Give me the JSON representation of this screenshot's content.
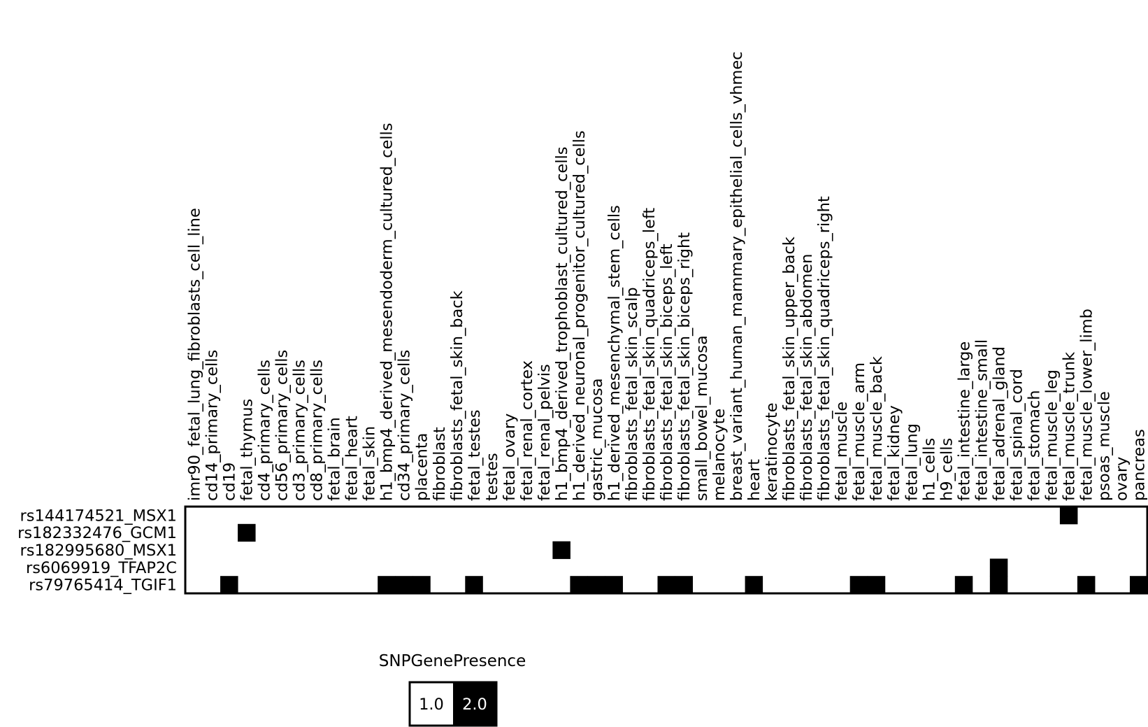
{
  "chart_data": {
    "type": "heatmap",
    "title": "",
    "xlabel": "",
    "ylabel": "",
    "columns": [
      "imr90_fetal_lung_fibroblasts_cell_line",
      "cd14_primary_cells",
      "cd19",
      "fetal_thymus",
      "cd4_primary_cells",
      "cd56_primary_cells",
      "cd3_primary_cells",
      "cd8_primary_cells",
      "fetal_brain",
      "fetal_heart",
      "fetal_skin",
      "h1_bmp4_derived_mesendoderm_cultured_cells",
      "cd34_primary_cells",
      "placenta",
      "fibroblast",
      "fibroblasts_fetal_skin_back",
      "fetal_testes",
      "testes",
      "fetal_ovary",
      "fetal_renal_cortex",
      "fetal_renal_pelvis",
      "h1_bmp4_derived_trophoblast_cultured_cells",
      "h1_derived_neuronal_progenitor_cultured_cells",
      "gastric_mucosa",
      "h1_derived_mesenchymal_stem_cells",
      "fibroblasts_fetal_skin_scalp",
      "fibroblasts_fetal_skin_quadriceps_left",
      "fibroblasts_fetal_skin_biceps_left",
      "fibroblasts_fetal_skin_biceps_right",
      "small_bowel_mucosa",
      "melanocyte",
      "breast_variant_human_mammary_epithelial_cells_vhmec",
      "heart",
      "keratinocyte",
      "fibroblasts_fetal_skin_upper_back",
      "fibroblasts_fetal_skin_abdomen",
      "fibroblasts_fetal_skin_quadriceps_right",
      "fetal_muscle",
      "fetal_muscle_arm",
      "fetal_muscle_back",
      "fetal_kidney",
      "fetal_lung",
      "h1_cells",
      "h9_cells",
      "fetal_intestine_large",
      "fetal_intestine_small",
      "fetal_adrenal_gland",
      "fetal_spinal_cord",
      "fetal_stomach",
      "fetal_muscle_leg",
      "fetal_muscle_trunk",
      "fetal_muscle_lower_limb",
      "psoas_muscle",
      "ovary",
      "pancreas"
    ],
    "rows": [
      "rs144174521_MSX1",
      "rs182332476_GCM1",
      "rs182995680_MSX1",
      "rs6069919_TFAP2C",
      "rs79765414_TGIF1"
    ],
    "present_cells": [
      {
        "row": "rs144174521_MSX1",
        "col": "fetal_muscle_trunk",
        "value": 2.0
      },
      {
        "row": "rs182332476_GCM1",
        "col": "fetal_thymus",
        "value": 2.0
      },
      {
        "row": "rs182995680_MSX1",
        "col": "h1_bmp4_derived_trophoblast_cultured_cells",
        "value": 2.0
      },
      {
        "row": "rs6069919_TFAP2C",
        "col": "fetal_adrenal_gland",
        "value": 2.0
      },
      {
        "row": "rs79765414_TGIF1",
        "col": "cd19",
        "value": 2.0
      },
      {
        "row": "rs79765414_TGIF1",
        "col": "h1_bmp4_derived_mesendoderm_cultured_cells",
        "value": 2.0
      },
      {
        "row": "rs79765414_TGIF1",
        "col": "cd34_primary_cells",
        "value": 2.0
      },
      {
        "row": "rs79765414_TGIF1",
        "col": "placenta",
        "value": 2.0
      },
      {
        "row": "rs79765414_TGIF1",
        "col": "fetal_testes",
        "value": 2.0
      },
      {
        "row": "rs79765414_TGIF1",
        "col": "h1_derived_neuronal_progenitor_cultured_cells",
        "value": 2.0
      },
      {
        "row": "rs79765414_TGIF1",
        "col": "gastric_mucosa",
        "value": 2.0
      },
      {
        "row": "rs79765414_TGIF1",
        "col": "h1_derived_mesenchymal_stem_cells",
        "value": 2.0
      },
      {
        "row": "rs79765414_TGIF1",
        "col": "fibroblasts_fetal_skin_biceps_left",
        "value": 2.0
      },
      {
        "row": "rs79765414_TGIF1",
        "col": "fibroblasts_fetal_skin_biceps_right",
        "value": 2.0
      },
      {
        "row": "rs79765414_TGIF1",
        "col": "heart",
        "value": 2.0
      },
      {
        "row": "rs79765414_TGIF1",
        "col": "fetal_muscle_arm",
        "value": 2.0
      },
      {
        "row": "rs79765414_TGIF1",
        "col": "fetal_muscle_back",
        "value": 2.0
      },
      {
        "row": "rs79765414_TGIF1",
        "col": "fetal_intestine_large",
        "value": 2.0
      },
      {
        "row": "rs79765414_TGIF1",
        "col": "fetal_adrenal_gland",
        "value": 2.0
      },
      {
        "row": "rs79765414_TGIF1",
        "col": "fetal_muscle_lower_limb",
        "value": 2.0
      },
      {
        "row": "rs79765414_TGIF1",
        "col": "pancreas",
        "value": 2.0
      }
    ],
    "default_value": 1.0,
    "legend": {
      "title": "SNPGenePresence",
      "entries": [
        {
          "label": "1.0",
          "color": "#ffffff",
          "text_color": "#000000"
        },
        {
          "label": "2.0",
          "color": "#000000",
          "text_color": "#ffffff"
        }
      ],
      "placement": "bottom"
    },
    "grid": false
  }
}
